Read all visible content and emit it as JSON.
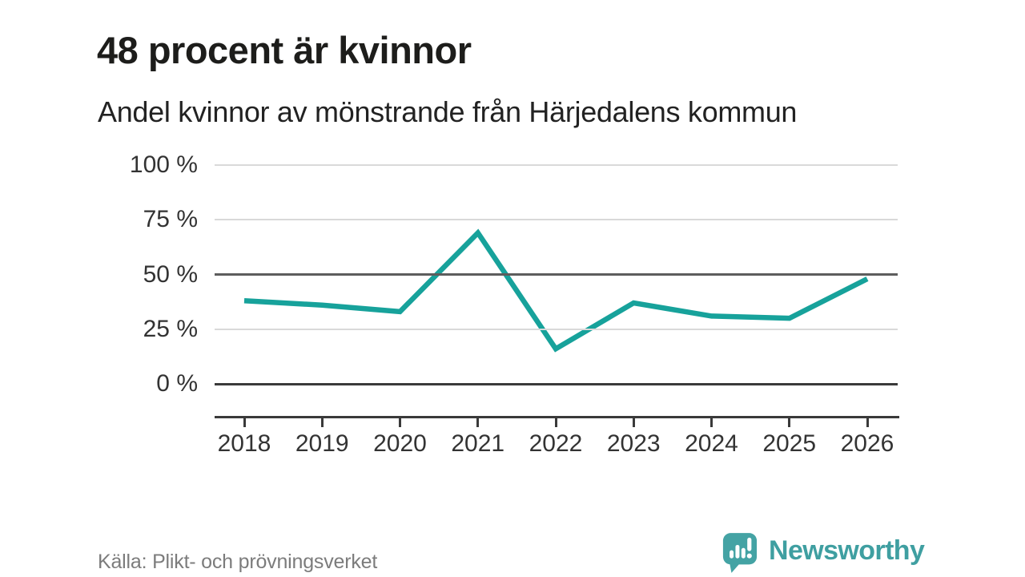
{
  "header": {
    "title": "48 procent är kvinnor",
    "subtitle": "Andel kvinnor av mönstrande från Härjedalens kommun"
  },
  "chart_data": {
    "type": "line",
    "title": "48 procent är kvinnor",
    "subtitle": "Andel kvinnor av mönstrande från Härjedalens kommun",
    "categories": [
      "2018",
      "2019",
      "2020",
      "2021",
      "2022",
      "2023",
      "2024",
      "2025",
      "2026"
    ],
    "series": [
      {
        "name": "Andel kvinnor av mönstrande",
        "values": [
          38,
          36,
          33,
          69,
          16,
          37,
          31,
          30,
          48
        ]
      }
    ],
    "unit": "%",
    "ylim": [
      0,
      100
    ],
    "yticks": [
      100,
      75,
      50,
      25,
      0
    ],
    "ytick_labels": [
      "100 %",
      "75 %",
      "50 %",
      "25 %",
      "0 %"
    ],
    "emphasized_gridlines": [
      50,
      0
    ],
    "grid": true,
    "legend": "none",
    "line_color": "#17a29b"
  },
  "footer": {
    "source": "Källa: Plikt- och prövningsverket",
    "logo_text": "Newsworthy"
  },
  "colors": {
    "accent": "#17a29b",
    "logo_teal": "#44a3a4",
    "logo_text_teal": "#3f9fa1",
    "grid_light": "#d9d9d9",
    "grid_dark": "#3a3a3a",
    "text_dark": "#1d1d1b",
    "text_gray": "#7c7c7c"
  }
}
